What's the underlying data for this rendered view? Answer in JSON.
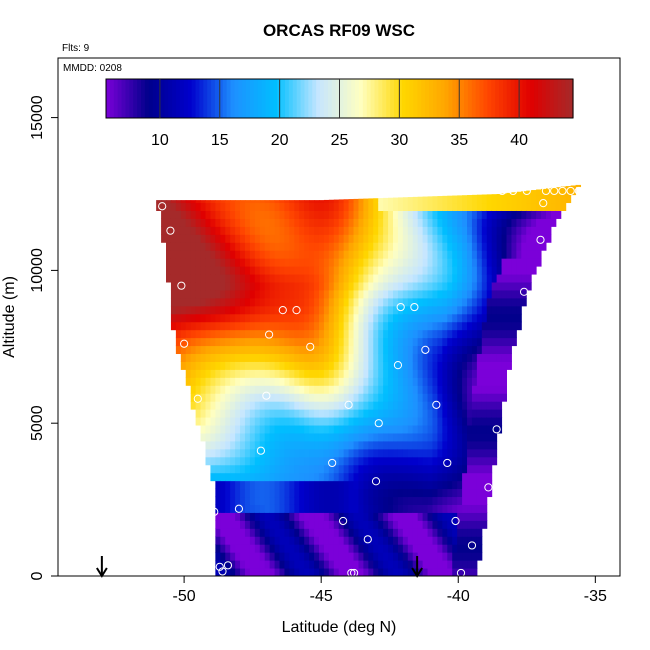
{
  "chart_data": {
    "type": "heatmap",
    "title": "ORCAS RF09 WSC",
    "annotations": {
      "flights": "Flts: 9",
      "date": "MMDD: 0208"
    },
    "xlabel": "Latitude (deg N)",
    "ylabel": "Altitude (m)",
    "xlim": [
      -54.6,
      -34.1
    ],
    "ylim": [
      0,
      16950
    ],
    "x_ticks": [
      -50,
      -45,
      -40,
      -35
    ],
    "x_tick_labels": [
      "-50",
      "-45",
      "-40",
      "-35"
    ],
    "y_ticks": [
      0,
      5000,
      10000,
      15000
    ],
    "y_tick_labels": [
      "0",
      "5000",
      "10000",
      "15000"
    ],
    "colorbar": {
      "range": [
        5.5,
        44.5
      ],
      "ticks": [
        10,
        15,
        20,
        25,
        30,
        35,
        40
      ],
      "tick_labels": [
        "10",
        "15",
        "20",
        "25",
        "30",
        "35",
        "40"
      ],
      "colors": [
        "#7b00d9",
        "#00008b",
        "#0000cd",
        "#1e90ff",
        "#00bfff",
        "#c6e6ff",
        "#ffffc0",
        "#ffd700",
        "#ffa500",
        "#ff4500",
        "#e00000",
        "#a52a2a"
      ]
    },
    "field": {
      "west_edge": [
        [
          0,
          -48.8
        ],
        [
          3000,
          -48.9
        ],
        [
          5000,
          -49.5
        ],
        [
          8000,
          -50.4
        ],
        [
          10000,
          -50.6
        ],
        [
          12300,
          -51.0
        ]
      ],
      "east_edge": [
        [
          0,
          -39.3
        ],
        [
          3000,
          -38.8
        ],
        [
          6000,
          -38.3
        ],
        [
          9000,
          -37.6
        ],
        [
          11500,
          -36.5
        ],
        [
          12700,
          -35.6
        ]
      ],
      "top_edge": [
        [
          -51.0,
          12300
        ],
        [
          -45,
          12300
        ],
        [
          -38.5,
          12500
        ],
        [
          -35.6,
          12800
        ]
      ]
    },
    "flight_points": [
      [
        -48.7,
        300
      ],
      [
        -48.4,
        350
      ],
      [
        -48.6,
        150
      ],
      [
        -43.9,
        100
      ],
      [
        -43.8,
        100
      ],
      [
        -39.9,
        100
      ],
      [
        -39.5,
        1000
      ],
      [
        -43.3,
        1200
      ],
      [
        -44.2,
        1800
      ],
      [
        -40.1,
        1800
      ],
      [
        -48.9,
        2100
      ],
      [
        -48.0,
        2200
      ],
      [
        -38.9,
        2900
      ],
      [
        -43.0,
        3100
      ],
      [
        -44.6,
        3700
      ],
      [
        -40.4,
        3700
      ],
      [
        -47.2,
        4100
      ],
      [
        -38.6,
        4800
      ],
      [
        -42.9,
        5000
      ],
      [
        -49.5,
        5800
      ],
      [
        -44.0,
        5600
      ],
      [
        -40.8,
        5600
      ],
      [
        -47.0,
        5900
      ],
      [
        -37.9,
        6700
      ],
      [
        -42.2,
        6900
      ],
      [
        -45.4,
        7500
      ],
      [
        -41.2,
        7400
      ],
      [
        -46.9,
        7900
      ],
      [
        -50.0,
        7600
      ],
      [
        -46.4,
        8700
      ],
      [
        -45.9,
        8700
      ],
      [
        -42.1,
        8800
      ],
      [
        -41.6,
        8800
      ],
      [
        -37.6,
        9300
      ],
      [
        -50.1,
        9500
      ],
      [
        -50.5,
        11300
      ],
      [
        -37.0,
        11000
      ],
      [
        -50.8,
        12100
      ],
      [
        -36.9,
        12200
      ],
      [
        -38.4,
        12600
      ],
      [
        -38.0,
        12600
      ],
      [
        -37.5,
        12600
      ],
      [
        -36.8,
        12600
      ],
      [
        -36.5,
        12600
      ],
      [
        -36.2,
        12600
      ],
      [
        -35.9,
        12600
      ],
      [
        -35.6,
        12600
      ]
    ],
    "drop_markers": [
      -53.0,
      -41.5
    ]
  }
}
